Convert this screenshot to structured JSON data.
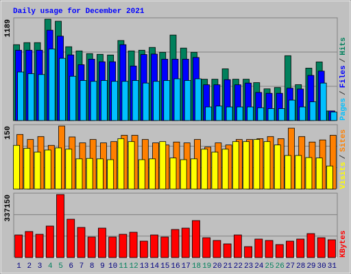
{
  "chart_data": [
    {
      "type": "bar",
      "title": "Daily usage for December 2021",
      "categories": [
        "1",
        "2",
        "3",
        "4",
        "5",
        "6",
        "7",
        "8",
        "9",
        "10",
        "11",
        "12",
        "13",
        "14",
        "15",
        "16",
        "17",
        "18",
        "19",
        "20",
        "21",
        "22",
        "23",
        "24",
        "25",
        "26",
        "27",
        "28",
        "29",
        "30",
        "31"
      ],
      "category_colors": [
        "#000080",
        "#000080",
        "#000080",
        "#00805c",
        "#00805c",
        "#000080",
        "#000080",
        "#000080",
        "#000080",
        "#000080",
        "#00805c",
        "#00805c",
        "#000080",
        "#000080",
        "#000080",
        "#000080",
        "#000080",
        "#00805c",
        "#00805c",
        "#000080",
        "#000080",
        "#000080",
        "#000080",
        "#000080",
        "#00805c",
        "#00805c",
        "#000080",
        "#000080",
        "#000080",
        "#000080",
        "#000080"
      ],
      "separator": "/",
      "ylim": [
        0,
        1189
      ],
      "yticks": [
        1189
      ],
      "series": [
        {
          "name": "Hits",
          "color": "#00805c",
          "values": [
            890,
            914,
            914,
            1189,
            1165,
            866,
            817,
            785,
            777,
            769,
            939,
            817,
            825,
            858,
            801,
            1003,
            850,
            801,
            485,
            485,
            607,
            485,
            485,
            445,
            372,
            388,
            761,
            421,
            615,
            688,
            113
          ]
        },
        {
          "name": "Files",
          "color": "#0000ff",
          "values": [
            825,
            825,
            825,
            1060,
            990,
            770,
            655,
            720,
            690,
            690,
            890,
            640,
            775,
            780,
            720,
            720,
            720,
            740,
            420,
            420,
            480,
            420,
            440,
            330,
            320,
            320,
            380,
            370,
            530,
            580,
            113
          ]
        },
        {
          "name": "Pages",
          "color": "#00c0ff",
          "values": [
            570,
            550,
            540,
            840,
            730,
            520,
            470,
            460,
            470,
            460,
            460,
            470,
            440,
            460,
            470,
            490,
            470,
            490,
            160,
            170,
            160,
            160,
            160,
            150,
            140,
            140,
            240,
            160,
            220,
            440,
            100
          ]
        }
      ]
    },
    {
      "type": "bar",
      "ylim": [
        0,
        150
      ],
      "yticks": [
        150
      ],
      "series": [
        {
          "name": "Sites",
          "color": "#ff8000",
          "values": [
            130,
            118,
            125,
            104,
            150,
            124,
            110,
            118,
            110,
            113,
            128,
            128,
            118,
            110,
            105,
            112,
            110,
            118,
            100,
            110,
            105,
            118,
            118,
            120,
            125,
            120,
            145,
            125,
            112,
            117,
            128
          ]
        },
        {
          "name": "Visits",
          "color": "#ffff00",
          "values": [
            104,
            97,
            88,
            93,
            98,
            95,
            72,
            73,
            72,
            70,
            120,
            113,
            70,
            72,
            113,
            74,
            70,
            72,
            95,
            88,
            95,
            113,
            113,
            118,
            113,
            105,
            80,
            80,
            75,
            74,
            55
          ]
        }
      ]
    },
    {
      "type": "bar",
      "ylim": [
        0,
        337150
      ],
      "yticks": [
        337150
      ],
      "series": [
        {
          "name": "KBytes",
          "color": "#ff0000",
          "values": [
            120900,
            139300,
            124600,
            168600,
            337150,
            205200,
            161300,
            110000,
            157600,
            110000,
            124600,
            135600,
            88000,
            120900,
            110000,
            150300,
            157600,
            197900,
            106300,
            91600,
            73300,
            120900,
            58600,
            99000,
            91600,
            69600,
            88000,
            99000,
            128300,
            106300,
            95300
          ]
        }
      ]
    }
  ]
}
